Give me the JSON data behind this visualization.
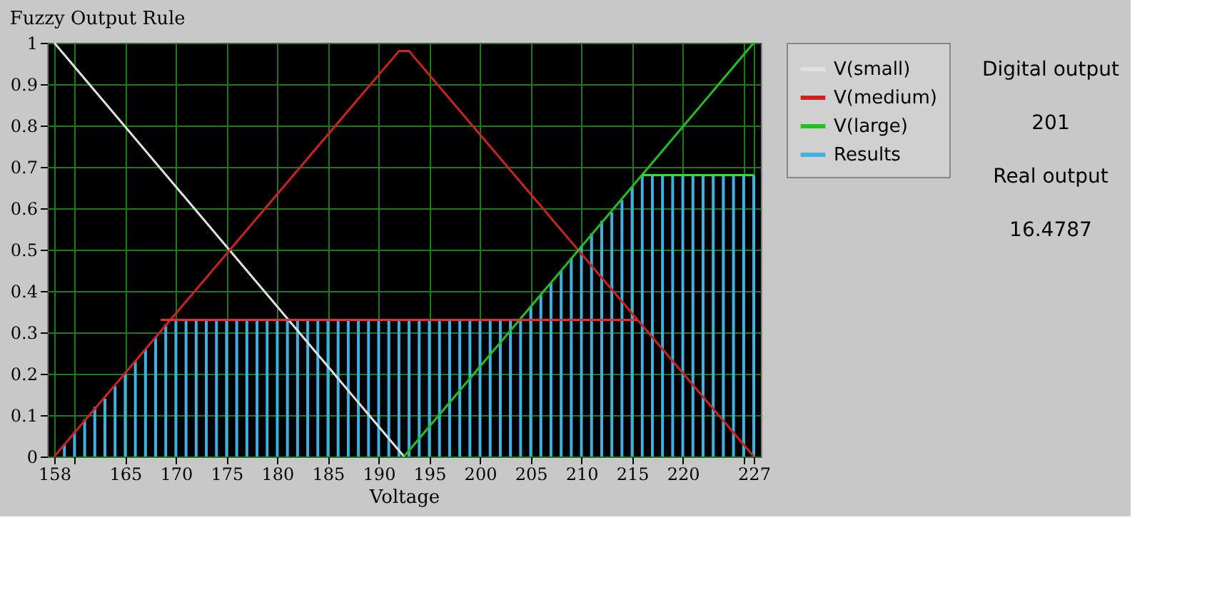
{
  "chart_data": {
    "type": "line",
    "title": "Fuzzy Output Rule",
    "xlabel": "Voltage",
    "xlim": [
      158,
      227
    ],
    "xticks": [
      158,
      {
        "value": 160,
        "label": null
      },
      165,
      170,
      175,
      180,
      185,
      190,
      195,
      200,
      205,
      210,
      215,
      220,
      {
        "value": 226,
        "label": null
      },
      227
    ],
    "ylim": [
      0,
      1
    ],
    "yticks": [
      0,
      0.1,
      0.2,
      0.3,
      0.4,
      0.5,
      0.6,
      0.7,
      0.8,
      0.9,
      1
    ],
    "grid": true,
    "legend": "right",
    "marker": "none",
    "line_style": "solid",
    "series": [
      {
        "name": "V(small)",
        "color": "#e0e0e0",
        "x": [
          158,
          192.5
        ],
        "values": [
          1,
          0
        ]
      },
      {
        "name": "V(medium)",
        "color": "#d02020",
        "x": [
          158,
          192,
          193,
          227
        ],
        "values": [
          0,
          0.98,
          0.98,
          0
        ]
      },
      {
        "name": "V(large)",
        "color": "#20c020",
        "x": [
          192.5,
          227
        ],
        "values": [
          0,
          1
        ]
      },
      {
        "name": "Results",
        "type": "bar",
        "color": "#40b0e0",
        "x": [
          158,
          159,
          160,
          161,
          162,
          163,
          164,
          165,
          166,
          167,
          168,
          169,
          170,
          171,
          172,
          173,
          174,
          175,
          176,
          177,
          178,
          179,
          180,
          181,
          182,
          183,
          184,
          185,
          186,
          187,
          188,
          189,
          190,
          191,
          192,
          193,
          194,
          195,
          196,
          197,
          198,
          199,
          200,
          201,
          202,
          203,
          204,
          205,
          206,
          207,
          208,
          209,
          210,
          211,
          212,
          213,
          214,
          215,
          216,
          217,
          218,
          219,
          220,
          221,
          222,
          223,
          224,
          225,
          226,
          227
        ],
        "values": [
          0,
          0.03,
          0.06,
          0.09,
          0.12,
          0.14,
          0.17,
          0.2,
          0.23,
          0.26,
          0.29,
          0.32,
          0.33,
          0.33,
          0.33,
          0.33,
          0.33,
          0.33,
          0.33,
          0.33,
          0.33,
          0.33,
          0.33,
          0.33,
          0.33,
          0.33,
          0.33,
          0.33,
          0.33,
          0.33,
          0.33,
          0.33,
          0.33,
          0.33,
          0.33,
          0.33,
          0.33,
          0.33,
          0.33,
          0.33,
          0.33,
          0.33,
          0.33,
          0.33,
          0.33,
          0.33,
          0.33,
          0.36,
          0.39,
          0.42,
          0.45,
          0.48,
          0.51,
          0.54,
          0.57,
          0.59,
          0.62,
          0.65,
          0.68,
          0.68,
          0.68,
          0.68,
          0.68,
          0.68,
          0.68,
          0.68,
          0.68,
          0.68,
          0.68,
          0.68
        ]
      },
      {
        "color": "#e03030",
        "x": [
          168.5,
          215.5
        ],
        "values": [
          0.33,
          0.33
        ]
      },
      {
        "color": "#30e030",
        "x": [
          216,
          227
        ],
        "values": [
          0.68,
          0.68
        ]
      }
    ],
    "annotations": [
      "Digital output",
      "201",
      "Real output",
      "16.4787"
    ]
  }
}
